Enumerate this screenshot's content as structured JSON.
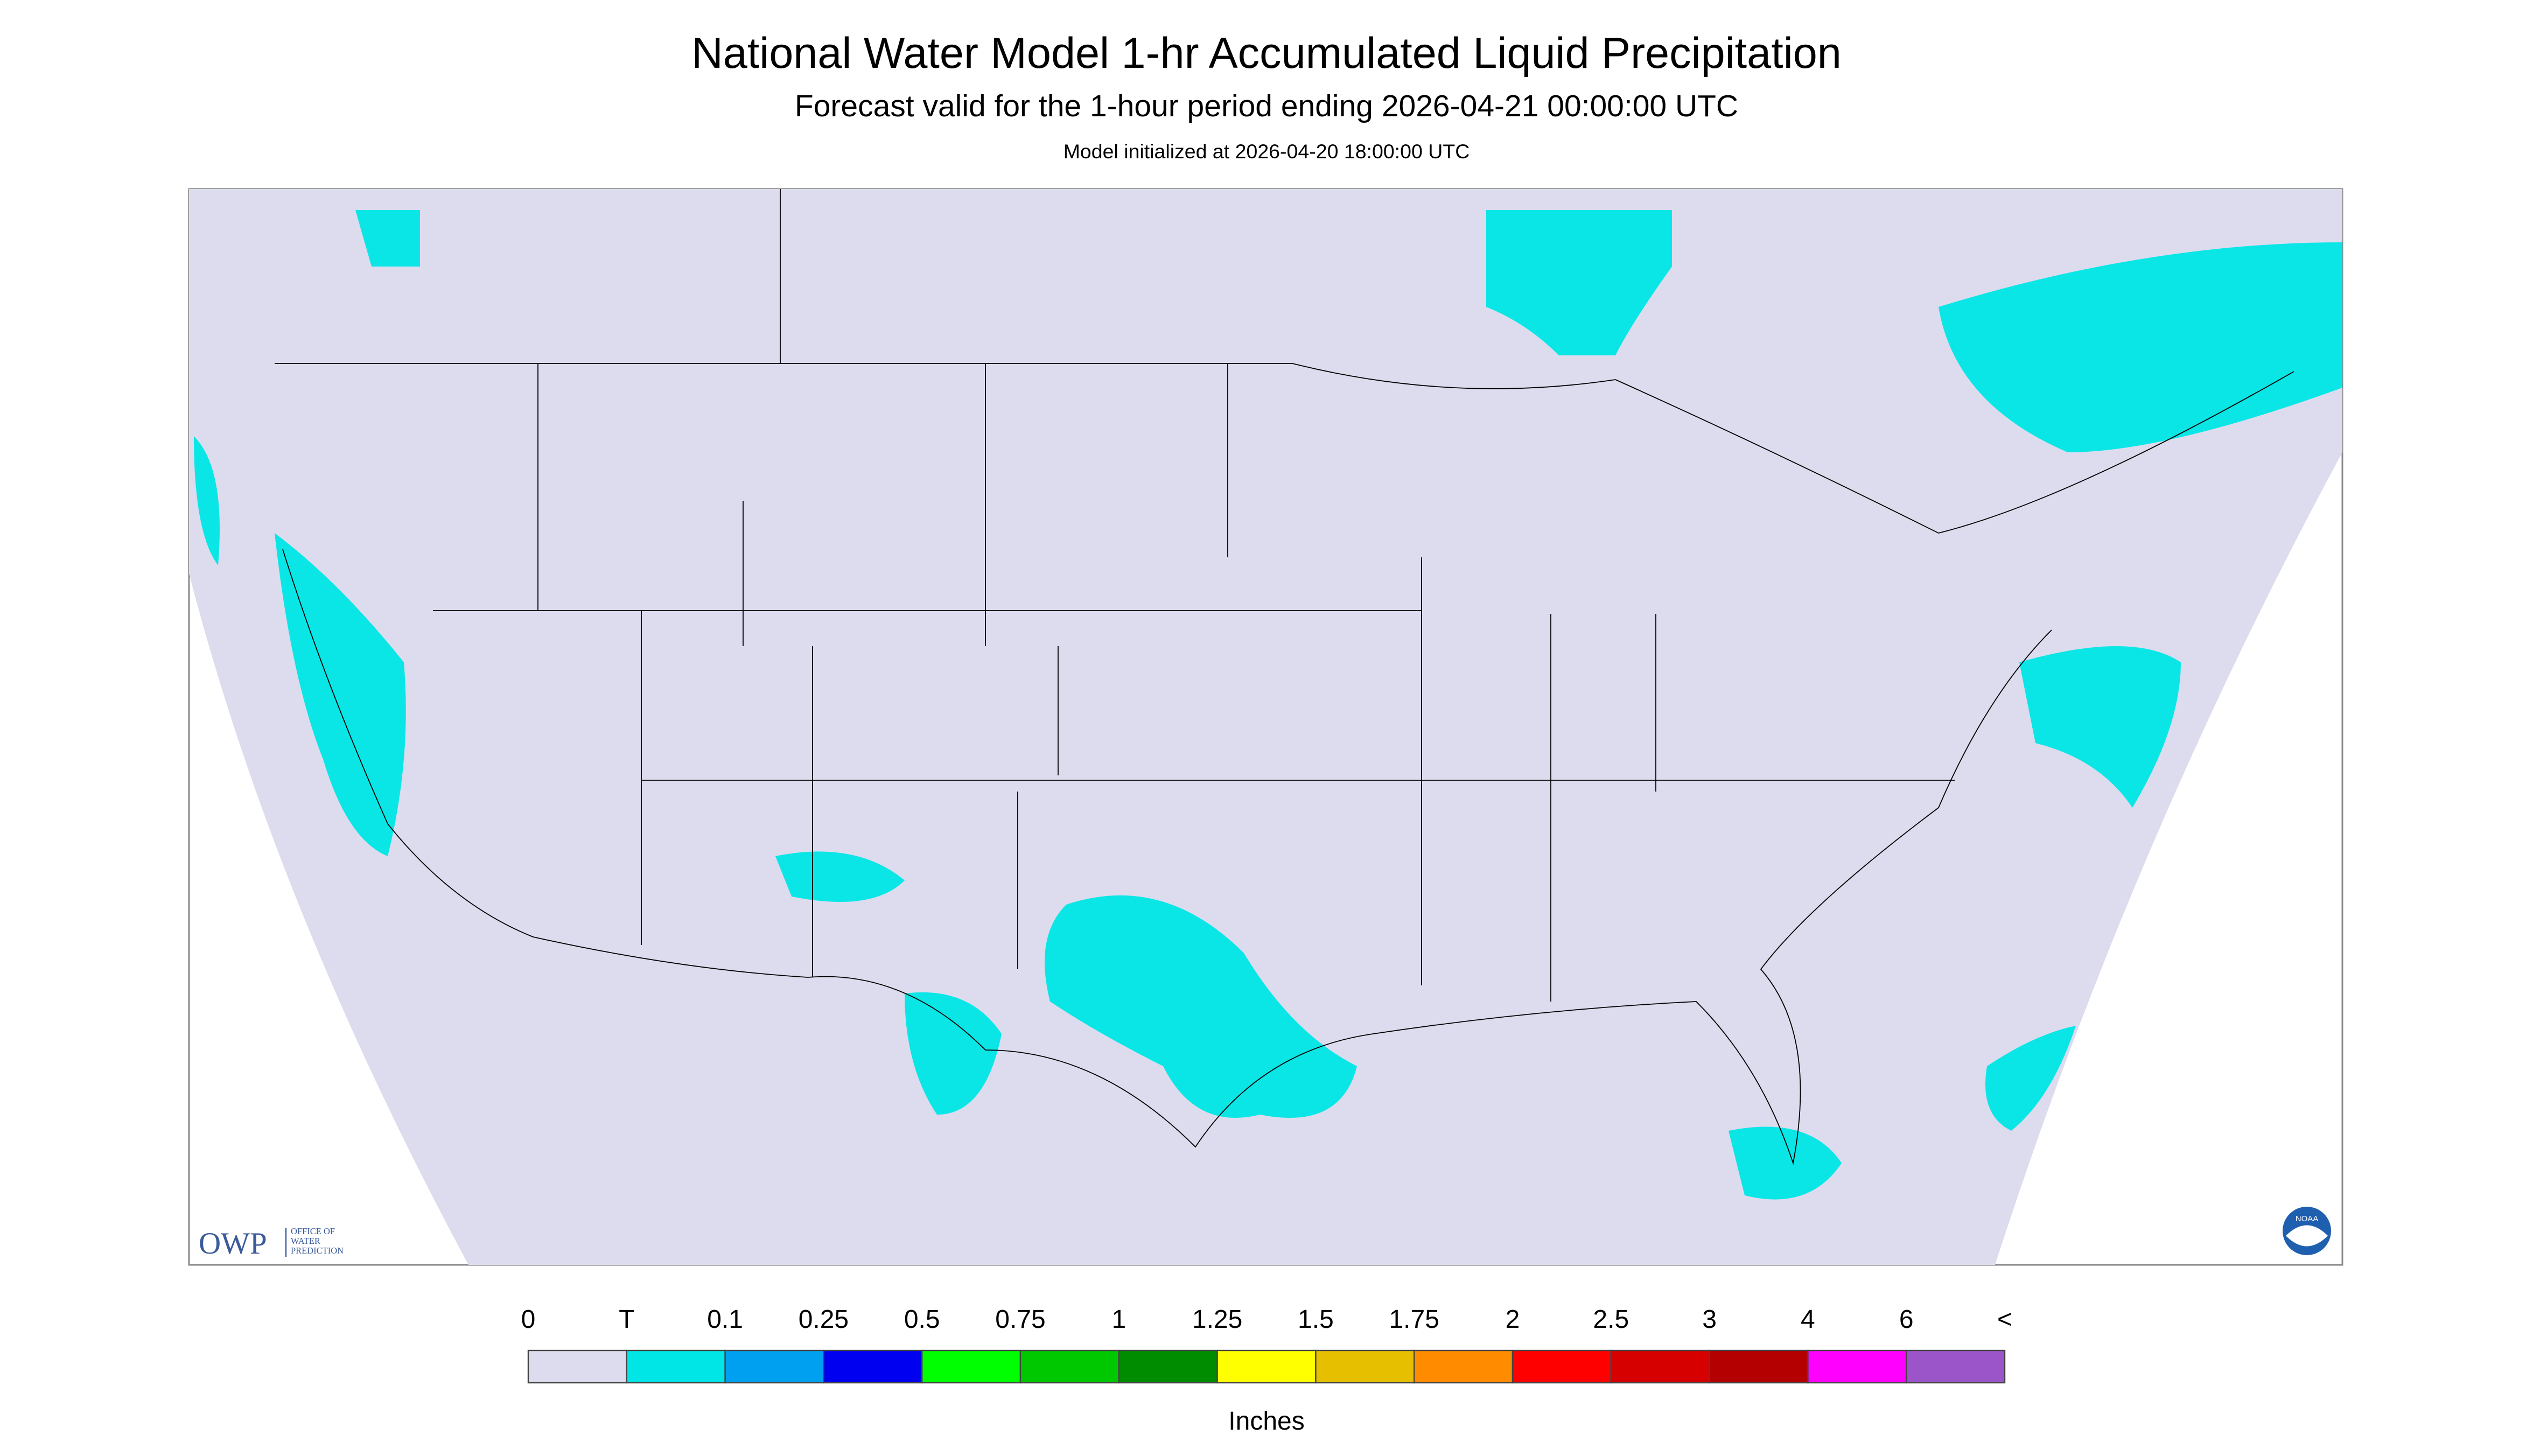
{
  "header": {
    "title": "National Water Model 1-hr Accumulated Liquid Precipitation",
    "subtitle": "Forecast valid for the 1-hour period ending 2026-04-21 00:00:00 UTC",
    "note": "Model initialized at 2026-04-20 18:00:00 UTC"
  },
  "logo": {
    "name": "OWP",
    "lines": [
      "OFFICE OF",
      "WATER",
      "PREDICTION"
    ],
    "agency": "NOAA"
  },
  "legend": {
    "labels": [
      "0",
      "T",
      "0.1",
      "0.25",
      "0.5",
      "0.75",
      "1",
      "1.25",
      "1.5",
      "1.75",
      "2",
      "2.5",
      "3",
      "4",
      "6",
      "<"
    ],
    "colors": [
      "#dcdcee",
      "#00e6e6",
      "#00a0f0",
      "#0000f0",
      "#00ff00",
      "#00c800",
      "#008c00",
      "#ffff00",
      "#e6c000",
      "#ff8c00",
      "#ff0000",
      "#d70000",
      "#b40000",
      "#ff00ff",
      "#9b55c8"
    ],
    "unit": "Inches"
  }
}
